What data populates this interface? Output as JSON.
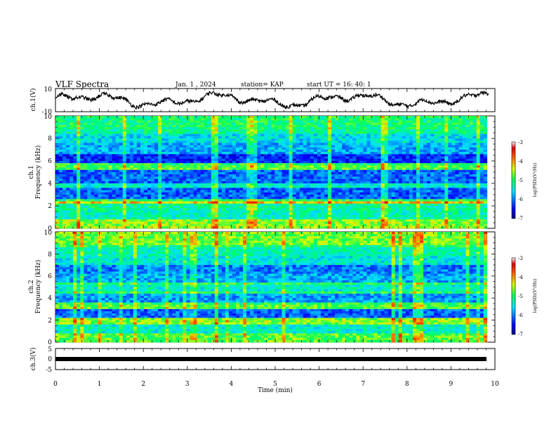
{
  "header": {
    "title": "VLF Spectra",
    "date": "Jan. 1 , 2024",
    "station": "station= KAP",
    "start": "start UT = 16: 40: 1"
  },
  "chart_data": [
    {
      "type": "line",
      "id": "ch1-waveform",
      "ylabel": "ch.1(V)",
      "ylim": [
        -10,
        10
      ],
      "yticks": [
        "10",
        "-10"
      ],
      "xlim": [
        0,
        10
      ],
      "color": "#000000"
    },
    {
      "type": "heatmap",
      "id": "ch1-spectrogram",
      "ylabel_top": "ch.1",
      "ylabel": "Frequency (kHz)",
      "ylim": [
        0,
        10
      ],
      "yticks": [
        "0",
        "2",
        "4",
        "6",
        "8",
        "10"
      ],
      "xlim": [
        0,
        10
      ],
      "data_end_min": 9.82,
      "colorbar": {
        "label": "log(PSD)(V²/Hz)",
        "range": [
          -7,
          -3
        ],
        "ticks": [
          "-3",
          "-4",
          "-5",
          "-6",
          "-7"
        ]
      }
    },
    {
      "type": "heatmap",
      "id": "ch2-spectrogram",
      "ylabel_top": "ch.2",
      "ylabel": "Frequency (kHz)",
      "ylim": [
        0,
        10
      ],
      "yticks": [
        "0",
        "2",
        "4",
        "6",
        "8",
        "10"
      ],
      "xlim": [
        0,
        10
      ],
      "data_end_min": 9.82,
      "colorbar": {
        "label": "log(PSD)(V²/Hz)",
        "range": [
          -7,
          -3
        ],
        "ticks": [
          "-3",
          "-4",
          "-5",
          "-6",
          "-7"
        ]
      }
    },
    {
      "type": "line",
      "id": "ch3-waveform",
      "ylabel": "ch.3(V)",
      "ylim": [
        -5,
        5
      ],
      "yticks": [
        "5",
        "0",
        "-5"
      ],
      "xlim": [
        0,
        10
      ],
      "level": 0,
      "color": "#000000"
    }
  ],
  "xaxis": {
    "label": "Time (min)",
    "ticks": [
      "0",
      "1",
      "2",
      "3",
      "4",
      "5",
      "6",
      "7",
      "8",
      "9",
      "10"
    ]
  }
}
